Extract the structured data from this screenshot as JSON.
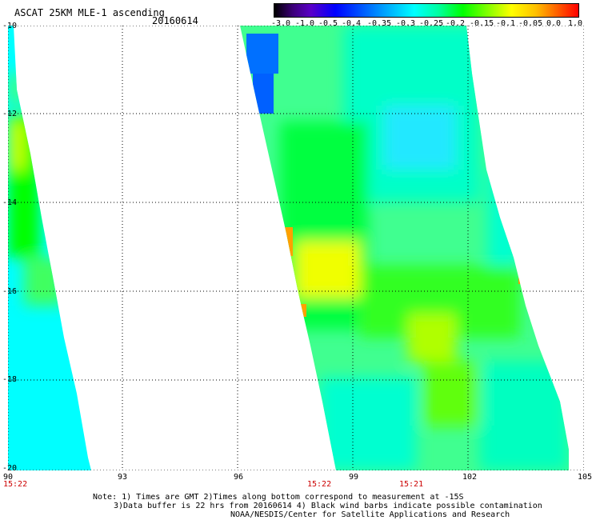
{
  "header": {
    "title": "ASCAT 25KM MLE-1 ascending",
    "date": "20160614"
  },
  "colorbar": {
    "labels": [
      "-3.0",
      "-1.0",
      "-0.5",
      "-0.4",
      "-0.35",
      "-0.3",
      "-0.25",
      "-0.2",
      "-0.15",
      "-0.1",
      "-0.05",
      "0.0",
      "1.0"
    ]
  },
  "axes": {
    "y_ticks": [
      "-10",
      "-12",
      "-14",
      "-16",
      "-18",
      "-20"
    ],
    "x_ticks": [
      "90",
      "93",
      "96",
      "99",
      "102",
      "105"
    ],
    "lat_range": [
      -20,
      -10
    ],
    "lon_range": [
      90,
      105
    ],
    "grid": "dotted"
  },
  "times": {
    "t1": "15:22",
    "t2": "15:22",
    "t3": "15:21"
  },
  "notes": {
    "line1": "Note: 1) Times are GMT 2)Times along bottom correspond to measurement at -15S",
    "line2": "3)Data buffer is 22 hrs from 20160614 4) Black wind barbs indicate possible contamination",
    "line3": "NOAA/NESDIS/Center for Satellite Applications and Research"
  },
  "colors": {
    "cyan": "#00ffff",
    "green": "#00ff00",
    "yellow": "#ffff00",
    "blue": "#0050ff",
    "orange": "#ff9000"
  }
}
